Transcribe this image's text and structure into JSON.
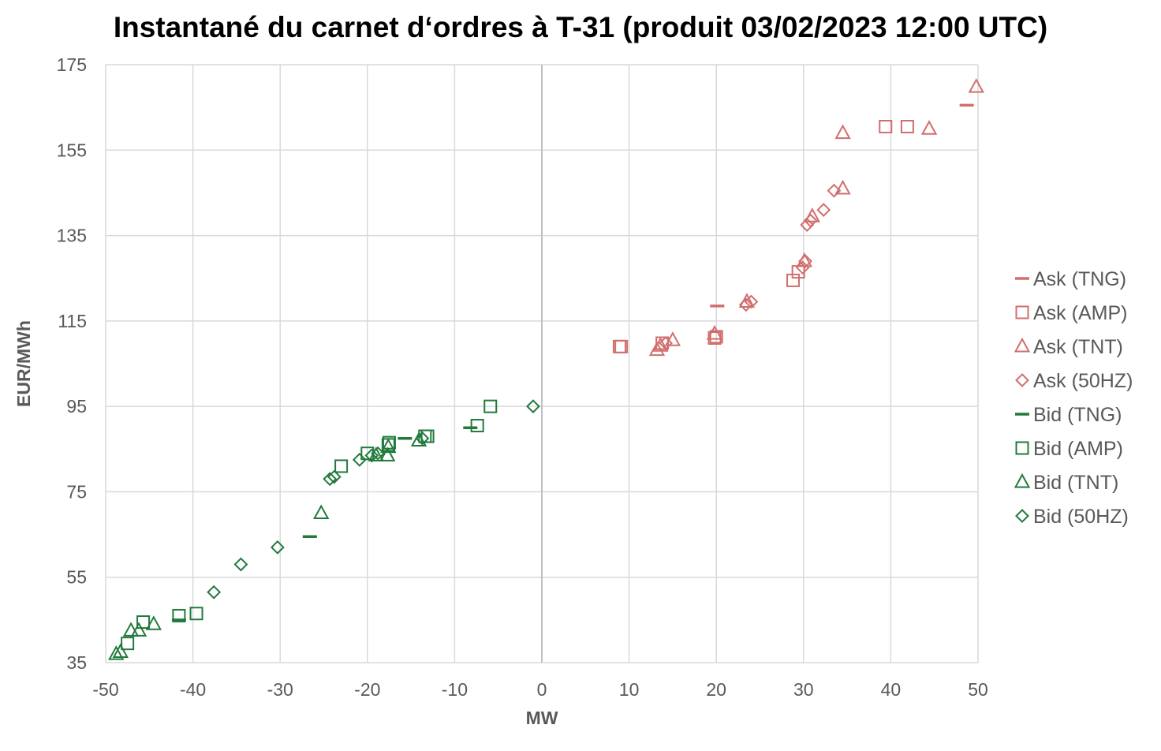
{
  "chart_data": {
    "type": "scatter",
    "title": "Instantané du carnet d‘ordres à T-31 (produit 03/02/2023 12:00 UTC)",
    "xlabel": "MW",
    "ylabel": "EUR/MWh",
    "xlim": [
      -50,
      50
    ],
    "ylim": [
      35,
      175
    ],
    "xticks": [
      -50,
      -40,
      -30,
      -20,
      -10,
      0,
      10,
      20,
      30,
      40,
      50
    ],
    "yticks": [
      35,
      55,
      75,
      95,
      115,
      135,
      155,
      175
    ],
    "grid": true,
    "legend_position": "right",
    "series": [
      {
        "name": "Ask (TNG)",
        "marker": "dash",
        "color": "#d26e6e",
        "points": [
          [
            20.1,
            118.5
          ],
          [
            48.7,
            165.5
          ]
        ]
      },
      {
        "name": "Ask (AMP)",
        "marker": "square",
        "color": "#d26e6e",
        "points": [
          [
            8.9,
            109.0
          ],
          [
            9.1,
            109.0
          ],
          [
            13.8,
            109.8
          ],
          [
            19.8,
            111.0
          ],
          [
            20.0,
            111.3
          ],
          [
            28.8,
            124.5
          ],
          [
            29.4,
            126.5
          ],
          [
            39.4,
            160.5
          ],
          [
            41.9,
            160.5
          ]
        ]
      },
      {
        "name": "Ask (TNT)",
        "marker": "triangle",
        "color": "#d26e6e",
        "points": [
          [
            13.2,
            108.2
          ],
          [
            13.6,
            109.2
          ],
          [
            15.0,
            110.5
          ],
          [
            19.8,
            112.0
          ],
          [
            23.5,
            119.5
          ],
          [
            30.1,
            129.0
          ],
          [
            31.0,
            139.5
          ],
          [
            34.5,
            146.0
          ],
          [
            34.5,
            159.0
          ],
          [
            44.4,
            160.0
          ],
          [
            49.8,
            169.8
          ]
        ]
      },
      {
        "name": "Ask (50HZ)",
        "marker": "diamond",
        "color": "#d26e6e",
        "points": [
          [
            14.2,
            109.8
          ],
          [
            23.4,
            118.8
          ],
          [
            24.0,
            119.5
          ],
          [
            29.9,
            127.5
          ],
          [
            30.2,
            129.0
          ],
          [
            30.4,
            137.5
          ],
          [
            30.8,
            138.5
          ],
          [
            32.3,
            141.0
          ],
          [
            33.5,
            145.5
          ]
        ]
      },
      {
        "name": "Bid (TNG)",
        "marker": "dash",
        "color": "#217a3c",
        "points": [
          [
            -26.6,
            64.5
          ],
          [
            -15.7,
            87.5
          ],
          [
            -8.2,
            90.0
          ],
          [
            -41.6,
            45.0
          ]
        ]
      },
      {
        "name": "Bid (AMP)",
        "marker": "square",
        "color": "#217a3c",
        "points": [
          [
            -5.9,
            95.0
          ],
          [
            -7.4,
            90.5
          ],
          [
            -13.1,
            88.0
          ],
          [
            -13.4,
            88.0
          ],
          [
            -17.5,
            86.5
          ],
          [
            -17.6,
            86.0
          ],
          [
            -20.0,
            84.0
          ],
          [
            -23.0,
            81.0
          ],
          [
            -39.6,
            46.5
          ],
          [
            -41.6,
            46.0
          ],
          [
            -45.7,
            44.5
          ],
          [
            -47.5,
            39.5
          ]
        ]
      },
      {
        "name": "Bid (TNT)",
        "marker": "triangle",
        "color": "#217a3c",
        "points": [
          [
            -14.1,
            87.0
          ],
          [
            -17.6,
            85.5
          ],
          [
            -17.7,
            83.5
          ],
          [
            -19.0,
            83.5
          ],
          [
            -25.3,
            70.0
          ],
          [
            -44.5,
            44.0
          ],
          [
            -46.2,
            42.5
          ],
          [
            -47.1,
            42.5
          ],
          [
            -48.3,
            37.5
          ],
          [
            -48.8,
            37.0
          ]
        ]
      },
      {
        "name": "Bid (50HZ)",
        "marker": "diamond",
        "color": "#217a3c",
        "points": [
          [
            -1.0,
            95.0
          ],
          [
            -13.7,
            87.5
          ],
          [
            -18.8,
            84.0
          ],
          [
            -19.5,
            83.5
          ],
          [
            -20.9,
            82.5
          ],
          [
            -23.8,
            78.5
          ],
          [
            -24.3,
            78.0
          ],
          [
            -30.3,
            62.0
          ],
          [
            -34.5,
            58.0
          ],
          [
            -37.6,
            51.5
          ]
        ]
      }
    ]
  }
}
